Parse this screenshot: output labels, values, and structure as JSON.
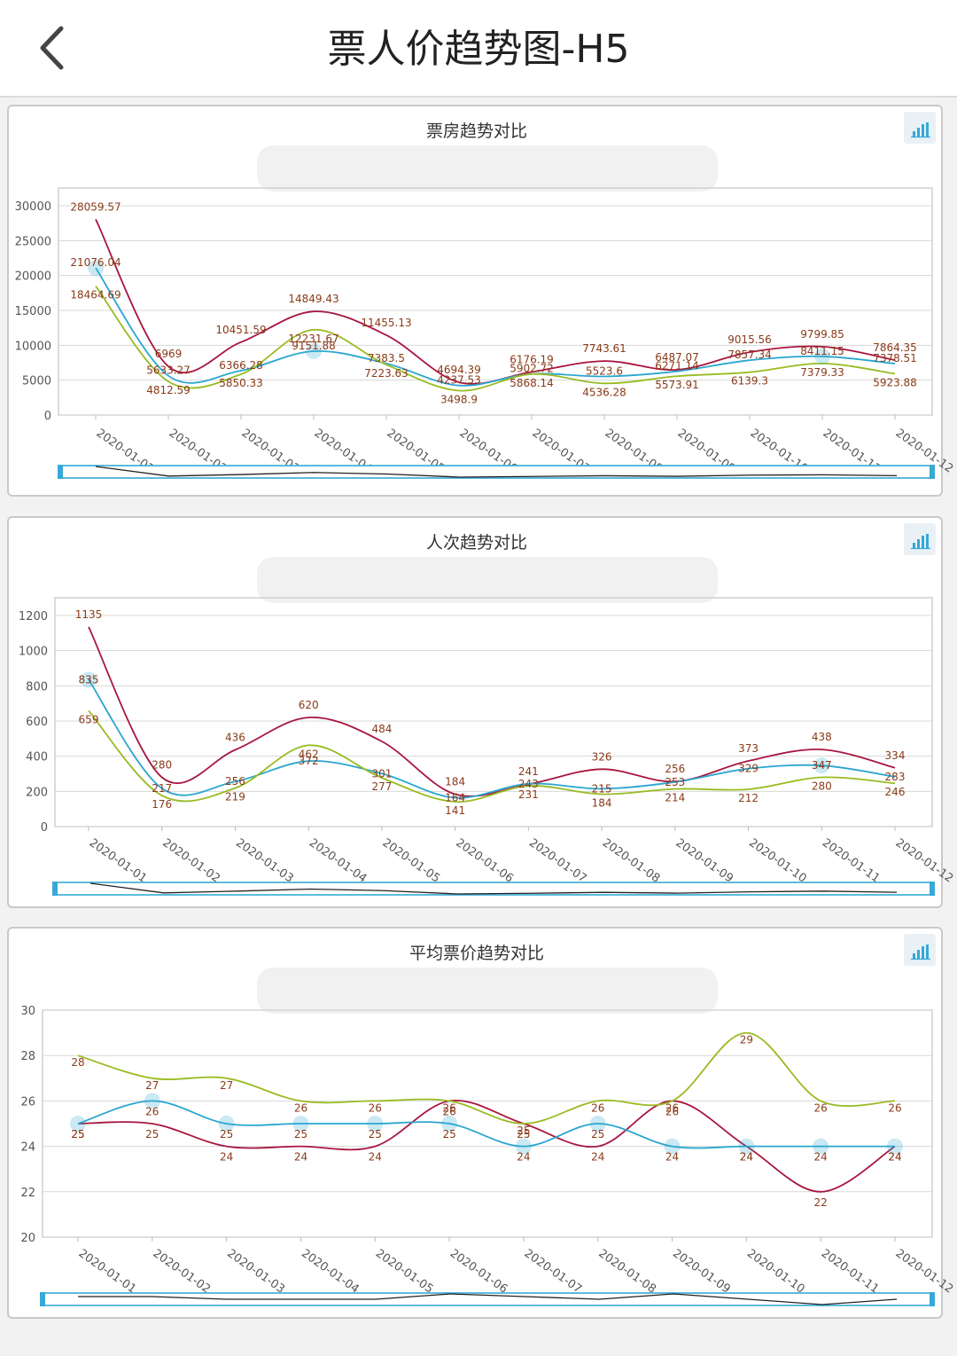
{
  "header": {
    "title": "票人价趋势图-H5"
  },
  "colors": {
    "series_a": "#a8163f",
    "series_b": "#2aa6cf",
    "series_c": "#99bb22",
    "label": "#8a3a18",
    "slider": "#36a9d6"
  },
  "icons": {
    "back": "chevron-left-icon",
    "toggle": "bar-chart-icon"
  },
  "chart_data": [
    {
      "type": "line",
      "title": "票房趋势对比",
      "categories": [
        "2020-01-01",
        "2020-01-02",
        "2020-01-03",
        "2020-01-04",
        "2020-01-05",
        "2020-01-06",
        "2020-01-07",
        "2020-01-08",
        "2020-01-09",
        "2020-01-10",
        "2020-01-11",
        "2020-01-12"
      ],
      "ylim": [
        0,
        30000
      ],
      "yticks": [
        0,
        5000,
        10000,
        15000,
        20000,
        25000,
        30000
      ],
      "grid": true,
      "series": [
        {
          "values": [
            28059.57,
            6969,
            10451.59,
            14849.43,
            11455.13,
            4694.39,
            6176.19,
            7743.61,
            6487.07,
            9015.56,
            9799.85,
            7864.35
          ]
        },
        {
          "values": [
            21076.04,
            5633.27,
            6366.28,
            9151.88,
            7383.5,
            4237.53,
            5902.72,
            5523.6,
            6271.14,
            7857.34,
            8411.15,
            7378.51
          ]
        },
        {
          "values": [
            18464.69,
            4812.59,
            5850.33,
            12231.67,
            7223.63,
            3498.9,
            5868.14,
            4536.28,
            5573.91,
            6139.3,
            7379.33,
            5923.88
          ]
        }
      ]
    },
    {
      "type": "line",
      "title": "人次趋势对比",
      "categories": [
        "2020-01-01",
        "2020-01-02",
        "2020-01-03",
        "2020-01-04",
        "2020-01-05",
        "2020-01-06",
        "2020-01-07",
        "2020-01-08",
        "2020-01-09",
        "2020-01-10",
        "2020-01-11",
        "2020-01-12"
      ],
      "ylim": [
        0,
        1200
      ],
      "yticks": [
        0,
        200,
        400,
        600,
        800,
        1000,
        1200
      ],
      "grid": true,
      "series": [
        {
          "values": [
            1135,
            280,
            436,
            620,
            484,
            184,
            241,
            326,
            256,
            373,
            438,
            334
          ]
        },
        {
          "values": [
            835,
            217,
            256,
            372,
            301,
            164,
            243,
            215,
            253,
            329,
            347,
            283
          ]
        },
        {
          "values": [
            659,
            176,
            219,
            462,
            277,
            141,
            231,
            184,
            214,
            212,
            280,
            246
          ]
        }
      ]
    },
    {
      "type": "line",
      "title": "平均票价趋势对比",
      "categories": [
        "2020-01-01",
        "2020-01-02",
        "2020-01-03",
        "2020-01-04",
        "2020-01-05",
        "2020-01-06",
        "2020-01-07",
        "2020-01-08",
        "2020-01-09",
        "2020-01-10",
        "2020-01-11",
        "2020-01-12"
      ],
      "ylim": [
        20,
        30
      ],
      "yticks": [
        20,
        22,
        24,
        26,
        28,
        30
      ],
      "grid": true,
      "series": [
        {
          "values": [
            25,
            25,
            24,
            24,
            24,
            26,
            25,
            24,
            26,
            24,
            22,
            24
          ]
        },
        {
          "values": [
            25,
            26,
            25,
            25,
            25,
            25,
            24,
            25,
            24,
            24,
            24,
            24
          ]
        },
        {
          "values": [
            28,
            27,
            27,
            26,
            26,
            26,
            25,
            26,
            26,
            29,
            26,
            26
          ]
        }
      ]
    }
  ]
}
